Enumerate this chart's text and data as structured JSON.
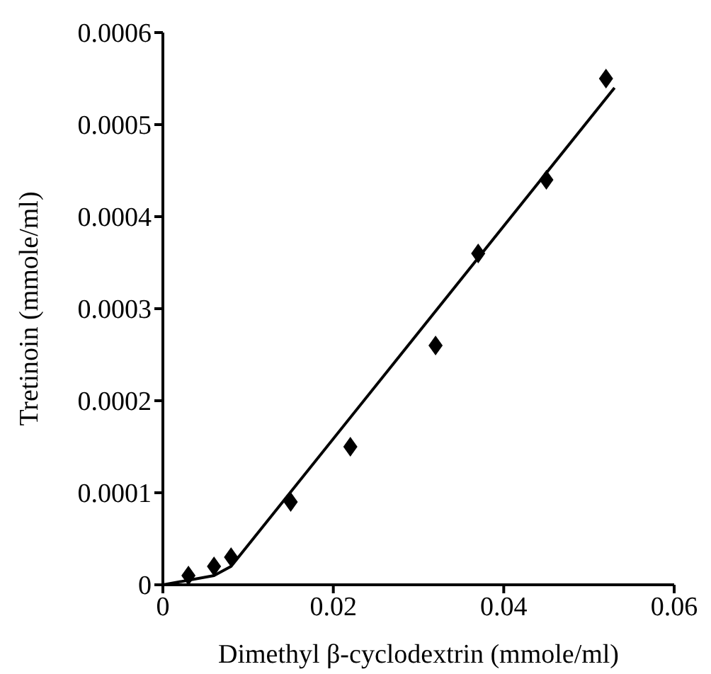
{
  "chart_data": {
    "type": "scatter",
    "xlabel": "Dimethyl β-cyclodextrin (mmole/ml)",
    "ylabel": "Tretinoin (mmole/ml)",
    "xlim": [
      0,
      0.06
    ],
    "xticks": [
      0,
      0.02,
      0.04,
      0.06
    ],
    "ylim": [
      0,
      0.0006
    ],
    "yticks": [
      0,
      0.0001,
      0.0002,
      0.0003,
      0.0004,
      0.0005,
      0.0006
    ],
    "grid": false,
    "legend": false,
    "marker": "diamond",
    "series": [
      {
        "color": "#000000",
        "x": [
          0.003,
          0.006,
          0.008,
          0.015,
          0.022,
          0.032,
          0.037,
          0.045,
          0.052
        ],
        "values": [
          1e-05,
          2e-05,
          3e-05,
          9e-05,
          0.00015,
          0.00026,
          0.00036,
          0.00044,
          0.00055
        ]
      },
      {
        "type": "line",
        "marker": "none",
        "color": "#000000",
        "x": [
          0,
          0.006,
          0.008,
          0.053
        ],
        "values": [
          0,
          1e-05,
          2e-05,
          0.00054
        ]
      }
    ]
  }
}
